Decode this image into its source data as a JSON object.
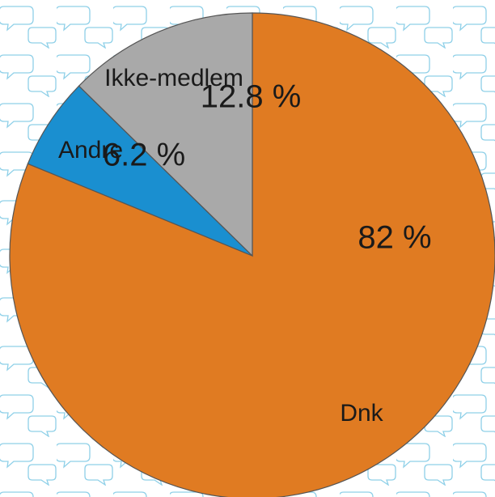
{
  "chart_data": {
    "type": "pie",
    "categories": [
      "Dnk",
      "Andre",
      "Ikke-medlem"
    ],
    "values": [
      82,
      6.2,
      12.8
    ],
    "value_labels": [
      "82 %",
      "6.2 %",
      "12.8 %"
    ],
    "colors": [
      "#e07b22",
      "#1a8fd0",
      "#a9a9a9"
    ]
  }
}
